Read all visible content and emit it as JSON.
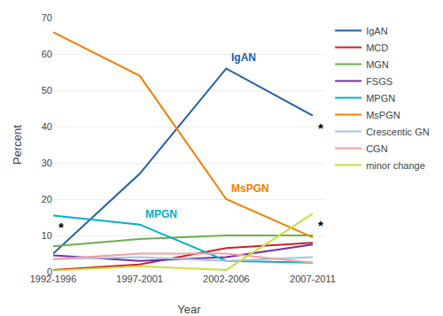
{
  "chart_data": {
    "type": "line",
    "xlabel": "Year",
    "ylabel": "Percent",
    "categories": [
      "1992-1996",
      "1997-2001",
      "2002-2006",
      "2007-2011"
    ],
    "series": [
      {
        "name": "IgAN",
        "color": "#1b5faa",
        "values": [
          5,
          27,
          56,
          43
        ]
      },
      {
        "name": "MCD",
        "color": "#cc2222",
        "values": [
          0.5,
          2,
          6.5,
          8
        ]
      },
      {
        "name": "MGN",
        "color": "#6ab04c",
        "values": [
          7,
          9,
          10,
          10
        ]
      },
      {
        "name": "FSGS",
        "color": "#7030a0",
        "values": [
          4.5,
          3,
          4,
          7.5
        ]
      },
      {
        "name": "MPGN",
        "color": "#00b0c8",
        "values": [
          15.5,
          13,
          3,
          2.5
        ]
      },
      {
        "name": "MsPGN",
        "color": "#f08000",
        "values": [
          66,
          54,
          20,
          9.5
        ]
      },
      {
        "name": "Crescentic GN",
        "color": "#a8c4e0",
        "values": [
          3.5,
          4,
          3,
          4
        ]
      },
      {
        "name": "CGN",
        "color": "#f4a0a0",
        "values": [
          3.5,
          5,
          5,
          2.5
        ]
      },
      {
        "name": "minor change",
        "color": "#c8e040",
        "values": [
          0.3,
          1.5,
          0.5,
          16
        ]
      }
    ],
    "ylim": [
      0,
      70
    ],
    "yticks": [
      0,
      10,
      20,
      30,
      40,
      50,
      60,
      70
    ],
    "grid": true,
    "legend": "right",
    "annotations": [
      {
        "text": "IgAN",
        "series": "IgAN",
        "category": "2002-2006"
      },
      {
        "text": "MPGN",
        "series": "MPGN",
        "category": "1997-2001"
      },
      {
        "text": "MsPGN",
        "series": "MsPGN",
        "category": "2002-2006"
      },
      {
        "text": "*",
        "series": "MPGN",
        "category": "1992-1996"
      },
      {
        "text": "*",
        "series": "IgAN",
        "category": "2007-2011"
      },
      {
        "text": "*",
        "series": "minor change",
        "category": "2007-2011"
      }
    ]
  }
}
